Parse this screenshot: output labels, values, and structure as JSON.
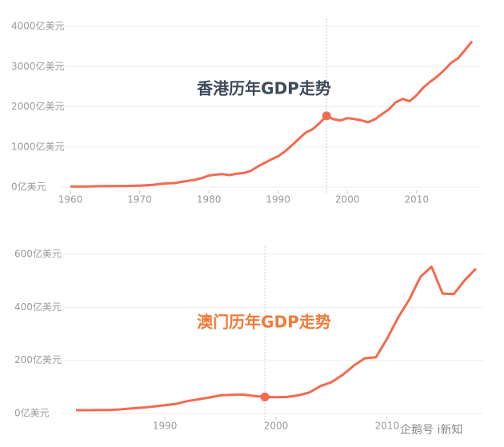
{
  "chart_data": [
    {
      "type": "line",
      "title": "香港历年GDP走势",
      "title_color": "#3d4a5c",
      "color": "#f26b4f",
      "x": [
        1960,
        1961,
        1962,
        1963,
        1964,
        1965,
        1966,
        1967,
        1968,
        1969,
        1970,
        1971,
        1972,
        1973,
        1974,
        1975,
        1976,
        1977,
        1978,
        1979,
        1980,
        1981,
        1982,
        1983,
        1984,
        1985,
        1986,
        1987,
        1988,
        1989,
        1990,
        1991,
        1992,
        1993,
        1994,
        1995,
        1996,
        1997,
        1998,
        1999,
        2000,
        2001,
        2002,
        2003,
        2004,
        2005,
        2006,
        2007,
        2008,
        2009,
        2010,
        2011,
        2012,
        2013,
        2014,
        2015,
        2016,
        2017,
        2018
      ],
      "values": [
        13,
        14,
        16,
        18,
        21,
        24,
        25,
        27,
        27,
        32,
        38,
        45,
        57,
        80,
        93,
        100,
        129,
        155,
        183,
        225,
        289,
        310,
        323,
        299,
        335,
        350,
        400,
        506,
        597,
        688,
        769,
        889,
        1043,
        1204,
        1358,
        1442,
        1597,
        1774,
        1689,
        1658,
        1717,
        1694,
        1663,
        1614,
        1691,
        1816,
        1935,
        2116,
        2193,
        2140,
        2286,
        2485,
        2626,
        2757,
        2915,
        3094,
        3209,
        3413,
        3627
      ],
      "highlight_x": 1997,
      "xlim": [
        1960,
        2018
      ],
      "xticks": [
        1960,
        1970,
        1980,
        1990,
        2000,
        2010
      ],
      "ylim": [
        0,
        4000
      ],
      "yticks": [
        {
          "value": 0,
          "label": "0亿美元"
        },
        {
          "value": 1000,
          "label": "1000亿美元"
        },
        {
          "value": 2000,
          "label": "2000亿美元"
        },
        {
          "value": 3000,
          "label": "3000亿美元"
        },
        {
          "value": 4000,
          "label": "4000亿美元"
        }
      ],
      "grid": true
    },
    {
      "type": "line",
      "title": "澳门历年GDP走势",
      "title_color": "#f07a3a",
      "color": "#f26b4f",
      "x": [
        1982,
        1983,
        1984,
        1985,
        1986,
        1987,
        1988,
        1989,
        1990,
        1991,
        1992,
        1993,
        1994,
        1995,
        1996,
        1997,
        1998,
        1999,
        2000,
        2001,
        2002,
        2003,
        2004,
        2005,
        2006,
        2007,
        2008,
        2009,
        2010,
        2011,
        2012,
        2013,
        2014,
        2015,
        2016,
        2017,
        2018
      ],
      "values": [
        12,
        12,
        13,
        13,
        15,
        19,
        22,
        26,
        31,
        36,
        46,
        53,
        60,
        68,
        70,
        71,
        66,
        62,
        61,
        62,
        68,
        79,
        103,
        118,
        145,
        180,
        208,
        212,
        282,
        362,
        430,
        515,
        553,
        452,
        450,
        503,
        546
      ],
      "highlight_x": 1999,
      "xlim": [
        1982,
        2018
      ],
      "xticks": [
        1990,
        2000,
        2010
      ],
      "ylim": [
        0,
        600
      ],
      "yticks": [
        {
          "value": 0,
          "label": "0亿美元"
        },
        {
          "value": 200,
          "label": "200亿美元"
        },
        {
          "value": 400,
          "label": "400亿美元"
        },
        {
          "value": 600,
          "label": "600亿美元"
        }
      ],
      "grid": true
    }
  ],
  "watermark": "企鹅号 i新知"
}
